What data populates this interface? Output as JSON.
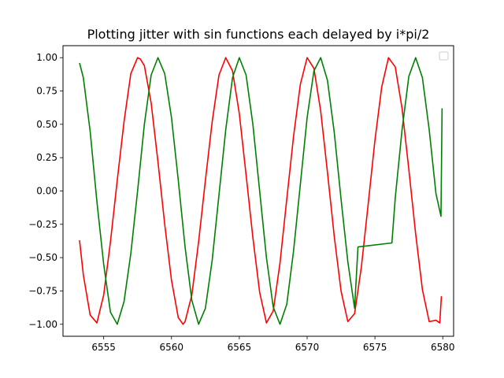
{
  "chart_data": {
    "type": "line",
    "title": "Plotting jitter with sin functions each delayed by i*pi/2",
    "xlabel": "",
    "ylabel": "",
    "xlim": [
      6552.0,
      6580.8
    ],
    "ylim": [
      -1.09,
      1.09
    ],
    "xticks": [
      6555,
      6560,
      6565,
      6570,
      6575,
      6580
    ],
    "xtick_labels": [
      "6555",
      "6560",
      "6565",
      "6570",
      "6575",
      "6580"
    ],
    "yticks": [
      1.0,
      0.75,
      0.5,
      0.25,
      0.0,
      -0.25,
      -0.5,
      -0.75,
      -1.0
    ],
    "ytick_labels": [
      "1.00",
      "0.75",
      "0.50",
      "0.25",
      "0.00",
      "−0.25",
      "−0.50",
      "−0.75",
      "−1.00"
    ],
    "grid": false,
    "legend": {
      "placement": "upper-right",
      "entries": []
    },
    "series": [
      {
        "color": "#ff0000",
        "x": [
          6553.22,
          6553.5,
          6554.0,
          6554.5,
          6555.0,
          6555.5,
          6556.0,
          6556.5,
          6557.0,
          6557.5,
          6557.7,
          6558.0,
          6558.5,
          6559.0,
          6559.5,
          6560.0,
          6560.5,
          6560.85,
          6561.0,
          6561.5,
          6562.0,
          6562.5,
          6563.0,
          6563.5,
          6564.0,
          6564.5,
          6565.0,
          6565.5,
          6566.0,
          6566.5,
          6567.0,
          6567.5,
          6568.0,
          6568.5,
          6569.0,
          6569.5,
          6570.0,
          6570.5,
          6571.0,
          6571.5,
          6572.0,
          6572.5,
          6573.0,
          6573.5,
          6574.0,
          6574.5,
          6575.0,
          6575.5,
          6576.0,
          6576.5,
          6577.0,
          6577.5,
          6578.0,
          6578.5,
          6579.0,
          6579.5,
          6579.78,
          6579.9
        ],
        "y": [
          -0.37,
          -0.63,
          -0.93,
          -0.99,
          -0.78,
          -0.38,
          0.08,
          0.52,
          0.88,
          1.0,
          0.99,
          0.94,
          0.66,
          0.22,
          -0.25,
          -0.67,
          -0.95,
          -1.0,
          -0.98,
          -0.78,
          -0.38,
          0.08,
          0.52,
          0.87,
          1.0,
          0.9,
          0.58,
          0.12,
          -0.35,
          -0.76,
          -0.99,
          -0.9,
          -0.54,
          -0.06,
          0.41,
          0.8,
          1.0,
          0.92,
          0.6,
          0.14,
          -0.34,
          -0.75,
          -0.98,
          -0.92,
          -0.57,
          -0.1,
          0.38,
          0.78,
          1.0,
          0.93,
          0.62,
          0.16,
          -0.32,
          -0.74,
          -0.98,
          -0.97,
          -0.99,
          -0.79
        ]
      },
      {
        "color": "#008000",
        "x": [
          6553.22,
          6553.5,
          6554.0,
          6554.5,
          6555.0,
          6555.5,
          6556.0,
          6556.5,
          6557.0,
          6557.5,
          6558.0,
          6558.5,
          6559.0,
          6559.5,
          6560.0,
          6560.5,
          6561.0,
          6561.5,
          6562.0,
          6562.5,
          6563.0,
          6563.5,
          6564.0,
          6564.5,
          6565.0,
          6565.5,
          6566.0,
          6566.5,
          6567.0,
          6567.5,
          6568.0,
          6568.5,
          6569.0,
          6569.5,
          6570.0,
          6570.5,
          6571.0,
          6571.5,
          6572.0,
          6572.5,
          6573.0,
          6573.5,
          6573.75,
          6576.25,
          6576.5,
          6577.0,
          6577.5,
          6578.0,
          6578.5,
          6579.0,
          6579.5,
          6579.87,
          6579.95
        ],
        "y": [
          0.96,
          0.85,
          0.45,
          -0.08,
          -0.55,
          -0.91,
          -1.0,
          -0.83,
          -0.47,
          0.0,
          0.5,
          0.87,
          1.0,
          0.88,
          0.55,
          0.08,
          -0.42,
          -0.82,
          -1.0,
          -0.88,
          -0.52,
          -0.03,
          0.46,
          0.85,
          1.0,
          0.87,
          0.5,
          0.0,
          -0.5,
          -0.87,
          -1.0,
          -0.85,
          -0.45,
          0.05,
          0.55,
          0.9,
          1.0,
          0.83,
          0.44,
          -0.06,
          -0.53,
          -0.88,
          -0.42,
          -0.39,
          -0.05,
          0.46,
          0.86,
          1.0,
          0.85,
          0.46,
          -0.02,
          -0.19,
          0.62
        ]
      }
    ]
  }
}
